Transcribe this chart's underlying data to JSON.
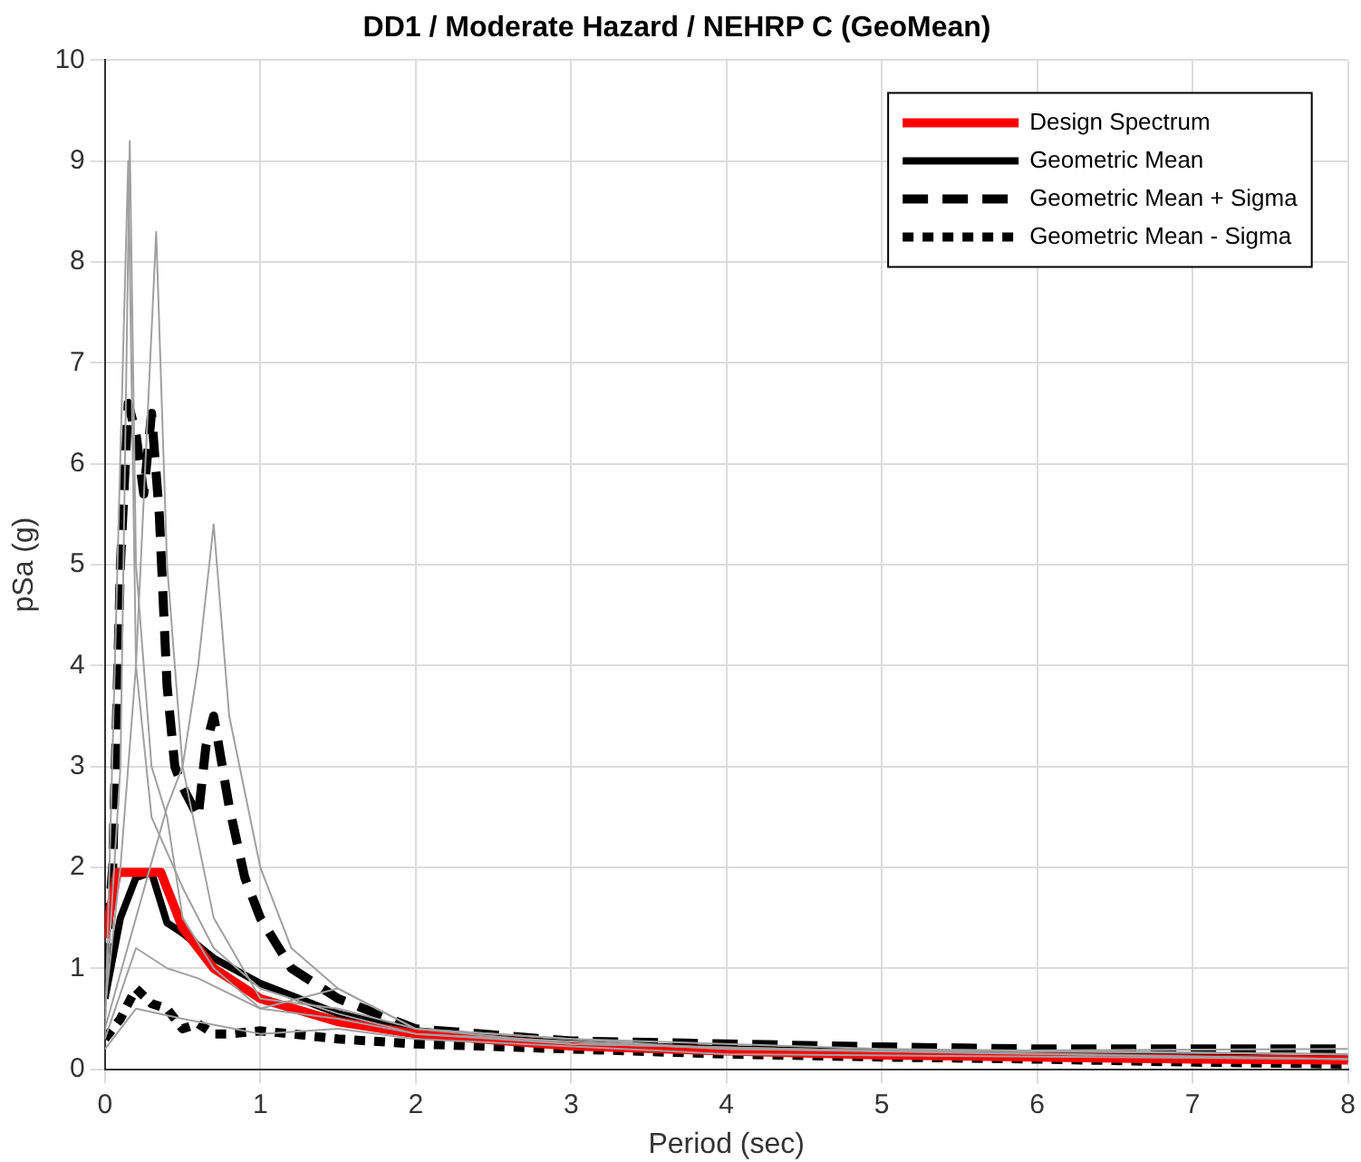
{
  "chart_data": {
    "type": "line",
    "title": "DD1 / Moderate Hazard / NEHRP C (GeoMean)",
    "xlabel": "Period (sec)",
    "ylabel": "pSa (g)",
    "xlim": [
      0,
      8
    ],
    "xticks": [
      0,
      1,
      2,
      3,
      4,
      5,
      6,
      7,
      8
    ],
    "ylim": [
      0,
      10
    ],
    "yticks": [
      0,
      1,
      2,
      3,
      4,
      5,
      6,
      7,
      8,
      9,
      10
    ],
    "grid": true,
    "legend": "top right",
    "marker": "none",
    "series": [
      {
        "color": "#a0a0a0",
        "line_style": "solid",
        "x": [
          0,
          0.1,
          0.16,
          0.2,
          0.3,
          0.4,
          0.5,
          0.7,
          1,
          1.5,
          2,
          3,
          5,
          8
        ],
        "values": [
          0.5,
          3,
          9.2,
          5,
          3,
          2.5,
          1.5,
          1,
          0.6,
          0.5,
          0.35,
          0.25,
          0.18,
          0.1
        ]
      },
      {
        "color": "#a0a0a0",
        "line_style": "solid",
        "x": [
          0,
          0.1,
          0.2,
          0.33,
          0.4,
          0.5,
          0.7,
          1,
          1.5,
          2,
          3,
          5,
          8
        ],
        "values": [
          0.6,
          2,
          4,
          8.3,
          5,
          3,
          1.5,
          0.7,
          0.6,
          0.4,
          0.3,
          0.2,
          0.15
        ]
      },
      {
        "color": "#a0a0a0",
        "line_style": "solid",
        "x": [
          0,
          0.2,
          0.4,
          0.5,
          0.6,
          0.7,
          0.8,
          1,
          1.2,
          1.5,
          2,
          3,
          5,
          8
        ],
        "values": [
          0.4,
          1.5,
          2.6,
          3,
          4,
          5.4,
          3.5,
          2,
          1.2,
          0.8,
          0.4,
          0.25,
          0.18,
          0.2
        ]
      },
      {
        "color": "#a0a0a0",
        "line_style": "solid",
        "x": [
          0,
          0.15,
          0.2,
          0.3,
          0.5,
          0.7,
          1,
          1.5,
          2,
          4,
          8
        ],
        "values": [
          0.3,
          9,
          4,
          2.5,
          1.8,
          1.2,
          0.8,
          0.55,
          0.35,
          0.2,
          0.1
        ]
      },
      {
        "color": "#a0a0a0",
        "line_style": "solid",
        "x": [
          0,
          0.2,
          0.4,
          0.6,
          1,
          1.5,
          2,
          4,
          8
        ],
        "values": [
          0.3,
          1.2,
          1,
          0.9,
          0.6,
          0.8,
          0.4,
          0.2,
          0.15
        ]
      },
      {
        "color": "#a0a0a0",
        "line_style": "solid",
        "x": [
          0,
          0.2,
          0.5,
          1,
          1.5,
          2,
          4,
          8
        ],
        "values": [
          0.2,
          0.6,
          0.5,
          0.35,
          0.4,
          0.3,
          0.15,
          0.1
        ]
      },
      {
        "name": "Design Spectrum",
        "color": "#ff0000",
        "line_style": "solid",
        "x": [
          0,
          0.08,
          0.36,
          0.5,
          0.7,
          1,
          1.5,
          2,
          3,
          4,
          5,
          6,
          7,
          8
        ],
        "values": [
          1.3,
          1.95,
          1.95,
          1.4,
          1,
          0.7,
          0.47,
          0.35,
          0.23,
          0.18,
          0.14,
          0.12,
          0.1,
          0.09
        ]
      },
      {
        "name": "Geometric Mean",
        "color": "#000000",
        "line_style": "solid",
        "x": [
          0,
          0.1,
          0.2,
          0.3,
          0.35,
          0.4,
          0.5,
          0.7,
          1,
          1.5,
          2,
          3,
          4,
          5,
          6,
          7,
          8
        ],
        "values": [
          0.7,
          1.5,
          1.9,
          1.95,
          1.7,
          1.45,
          1.35,
          1.1,
          0.85,
          0.55,
          0.38,
          0.25,
          0.2,
          0.17,
          0.14,
          0.12,
          0.1
        ]
      },
      {
        "name": "Geometric Mean + Sigma",
        "color": "#000000",
        "line_style": "dashed",
        "x": [
          0,
          0.05,
          0.1,
          0.15,
          0.2,
          0.25,
          0.3,
          0.35,
          0.4,
          0.45,
          0.5,
          0.6,
          0.65,
          0.7,
          0.8,
          0.9,
          1,
          1.2,
          1.5,
          2,
          3,
          4,
          5,
          6,
          7,
          8
        ],
        "values": [
          1,
          2,
          5,
          6.6,
          6.3,
          5.7,
          6.5,
          5.5,
          3.8,
          3,
          2.8,
          2.5,
          3.2,
          3.5,
          2.6,
          1.9,
          1.5,
          1,
          0.7,
          0.4,
          0.28,
          0.25,
          0.22,
          0.2,
          0.2,
          0.2
        ]
      },
      {
        "name": "Geometric Mean - Sigma",
        "color": "#000000",
        "line_style": "dotted",
        "x": [
          0,
          0.1,
          0.2,
          0.3,
          0.4,
          0.5,
          0.6,
          0.7,
          0.8,
          1,
          1.2,
          1.5,
          2,
          3,
          4,
          5,
          6,
          7,
          8
        ],
        "values": [
          0.3,
          0.5,
          0.8,
          0.65,
          0.6,
          0.4,
          0.45,
          0.35,
          0.35,
          0.38,
          0.35,
          0.3,
          0.25,
          0.2,
          0.15,
          0.12,
          0.1,
          0.07,
          0.05
        ]
      }
    ]
  }
}
